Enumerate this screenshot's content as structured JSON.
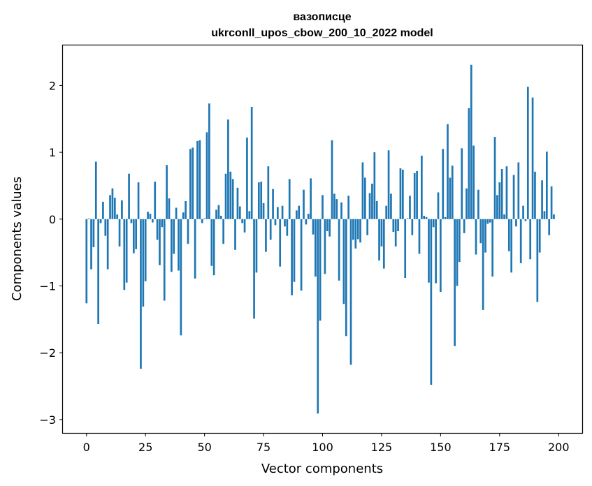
{
  "chart_data": {
    "type": "bar",
    "title_line1": "вазописце",
    "title_line2": "ukrconll_upos_cbow_200_10_2022 model",
    "xlabel": "Vector components",
    "ylabel": "Components values",
    "xlim": [
      -10,
      210
    ],
    "ylim": [
      -3.2,
      2.6
    ],
    "xticks": [
      0,
      25,
      50,
      75,
      100,
      125,
      150,
      175,
      200
    ],
    "yticks": [
      -3,
      -2,
      -1,
      0,
      1,
      2
    ],
    "ytick_labels": [
      "−3",
      "−2",
      "−1",
      "0",
      "1",
      "2"
    ],
    "bar_color": "#1f77b4",
    "values": [
      -1.26,
      0.01,
      -0.75,
      -0.42,
      0.86,
      -1.57,
      -0.06,
      0.26,
      -0.25,
      -0.75,
      0.36,
      0.46,
      0.32,
      0.07,
      -0.41,
      0.28,
      -1.06,
      -0.95,
      0.68,
      -0.06,
      -0.51,
      -0.45,
      0.55,
      -2.24,
      -1.31,
      -0.93,
      0.11,
      0.08,
      -0.05,
      0.56,
      -0.31,
      -0.69,
      -0.12,
      -1.22,
      0.81,
      0.31,
      -0.79,
      -0.52,
      0.17,
      -0.77,
      -1.74,
      0.1,
      0.27,
      -0.37,
      1.05,
      1.07,
      -0.89,
      1.17,
      1.18,
      -0.06,
      0.01,
      1.3,
      1.73,
      -0.7,
      -0.84,
      0.14,
      0.21,
      0.05,
      -0.37,
      0.68,
      1.49,
      0.71,
      0.6,
      -0.46,
      0.47,
      0.19,
      -0.06,
      -0.2,
      1.22,
      0.12,
      1.68,
      -1.49,
      -0.8,
      0.55,
      0.56,
      0.24,
      -0.49,
      0.79,
      -0.31,
      0.45,
      -0.09,
      0.18,
      -0.71,
      0.2,
      -0.11,
      -0.25,
      0.6,
      -1.14,
      -0.94,
      0.13,
      0.2,
      -1.07,
      0.44,
      -0.08,
      0.08,
      0.61,
      -0.23,
      -0.86,
      -2.91,
      -1.52,
      0.36,
      -0.82,
      -0.18,
      -0.26,
      1.18,
      0.38,
      0.3,
      -0.92,
      0.25,
      -1.27,
      -1.75,
      0.35,
      -2.18,
      -0.31,
      -0.44,
      -0.3,
      -0.35,
      0.85,
      0.62,
      -0.24,
      0.39,
      0.53,
      1.0,
      0.27,
      -0.62,
      -0.41,
      -0.74,
      0.2,
      1.03,
      0.38,
      -0.19,
      -0.41,
      -0.18,
      0.76,
      0.74,
      -0.88,
      0.01,
      0.35,
      -0.24,
      0.69,
      0.72,
      -0.52,
      0.95,
      0.05,
      0.03,
      -0.95,
      -2.48,
      -0.12,
      -0.96,
      0.4,
      -1.09,
      1.05,
      0.03,
      1.42,
      0.62,
      0.8,
      -1.9,
      -1.0,
      -0.64,
      1.06,
      -0.21,
      0.46,
      1.66,
      2.31,
      1.1,
      -0.53,
      0.44,
      -0.36,
      -1.36,
      -0.5,
      -0.07,
      -0.05,
      -0.86,
      1.23,
      0.36,
      0.55,
      0.75,
      0.07,
      0.79,
      -0.48,
      -0.8,
      0.66,
      -0.11,
      0.85,
      -0.66,
      0.2,
      -0.03,
      1.98,
      -0.6,
      1.82,
      0.71,
      -1.24,
      -0.5,
      0.58,
      0.12,
      1.01,
      -0.24,
      0.49,
      0.07
    ]
  }
}
